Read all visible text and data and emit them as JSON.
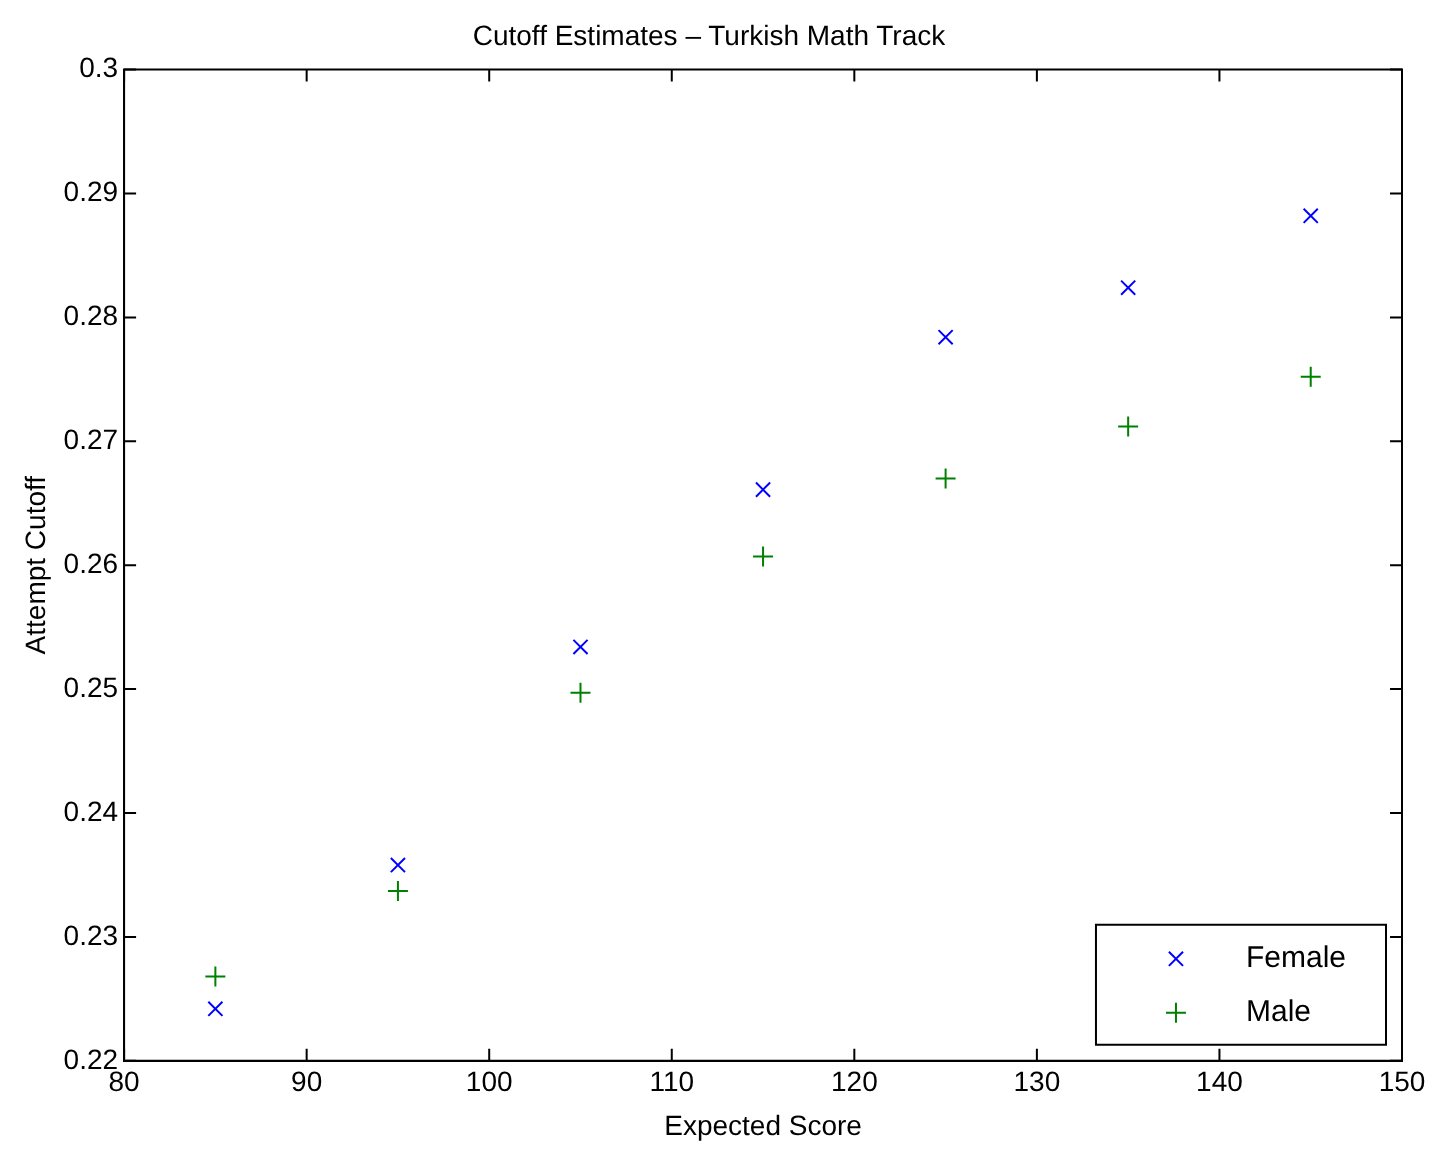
{
  "chart_data": {
    "type": "scatter",
    "title": "Cutoff Estimates – Turkish Math Track",
    "xlabel": "Expected Score",
    "ylabel": "Attempt Cutoff",
    "x": [
      85,
      95,
      105,
      115,
      125,
      135,
      145
    ],
    "series": [
      {
        "name": "Female",
        "color": "#0000ff",
        "marker": "cross",
        "values": [
          0.2242,
          0.2358,
          0.2534,
          0.2661,
          0.2784,
          0.2824,
          0.2882
        ]
      },
      {
        "name": "Male",
        "color": "#008000",
        "marker": "plus",
        "values": [
          0.2268,
          0.2337,
          0.2497,
          0.2607,
          0.267,
          0.2712,
          0.2752
        ]
      }
    ],
    "xlim": [
      80,
      150
    ],
    "xticks": [
      80,
      90,
      100,
      110,
      120,
      130,
      140,
      150
    ],
    "ylim": [
      0.22,
      0.3
    ],
    "yticks": [
      0.22,
      0.23,
      0.24,
      0.25,
      0.26,
      0.27,
      0.28,
      0.29,
      0.3
    ],
    "grid": false,
    "legend": "bottom right"
  }
}
